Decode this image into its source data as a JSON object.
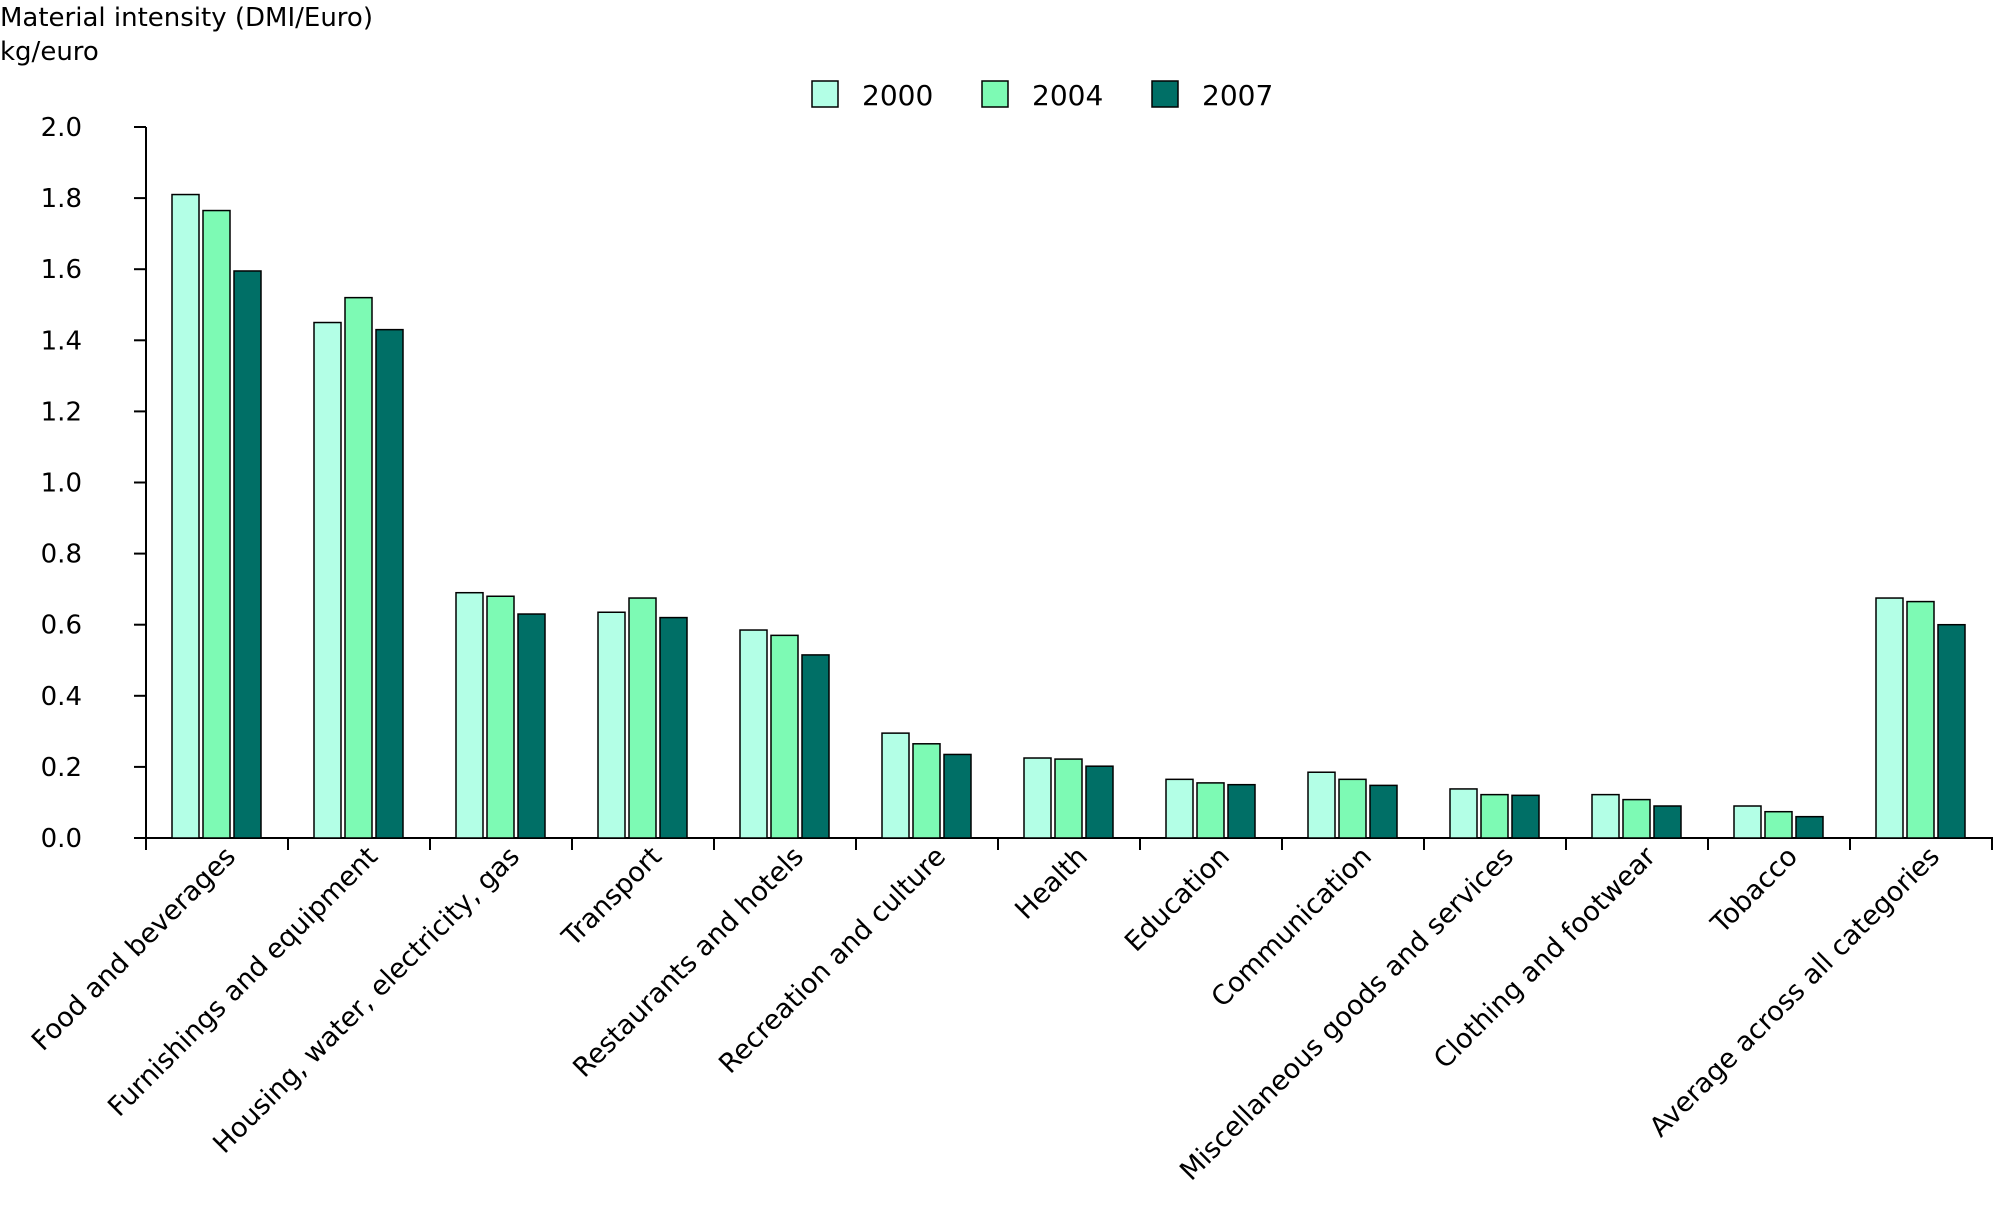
{
  "chart_data": {
    "type": "bar",
    "title": "Material intensity (DMI/Euro)",
    "ylabel": "kg/euro",
    "xlabel": "",
    "ylim": [
      0,
      2.0
    ],
    "yticks": [
      "0.0",
      "0.2",
      "0.4",
      "0.6",
      "0.8",
      "1.0",
      "1.2",
      "1.4",
      "1.6",
      "1.8",
      "2.0"
    ],
    "grid": false,
    "legend_position": "top-center",
    "categories": [
      "Food and beverages",
      "Furnishings and equipment",
      "Housing, water, electricity, gas",
      "Transport",
      "Restaurants and hotels",
      "Recreation and culture",
      "Health",
      "Education",
      "Communication",
      "Miscellaneous goods and services",
      "Clothing and footwear",
      "Tobacco",
      "Average across all categories"
    ],
    "series": [
      {
        "name": "2000",
        "color": "#b3ffe6",
        "values": [
          1.81,
          1.45,
          0.69,
          0.635,
          0.585,
          0.295,
          0.225,
          0.165,
          0.185,
          0.138,
          0.122,
          0.09,
          0.675
        ]
      },
      {
        "name": "2004",
        "color": "#7dfab4",
        "values": [
          1.765,
          1.52,
          0.68,
          0.675,
          0.57,
          0.265,
          0.222,
          0.155,
          0.165,
          0.122,
          0.108,
          0.074,
          0.665
        ]
      },
      {
        "name": "2007",
        "color": "#006f66",
        "values": [
          1.595,
          1.43,
          0.63,
          0.62,
          0.515,
          0.235,
          0.202,
          0.15,
          0.148,
          0.12,
          0.09,
          0.06,
          0.6
        ]
      }
    ]
  }
}
